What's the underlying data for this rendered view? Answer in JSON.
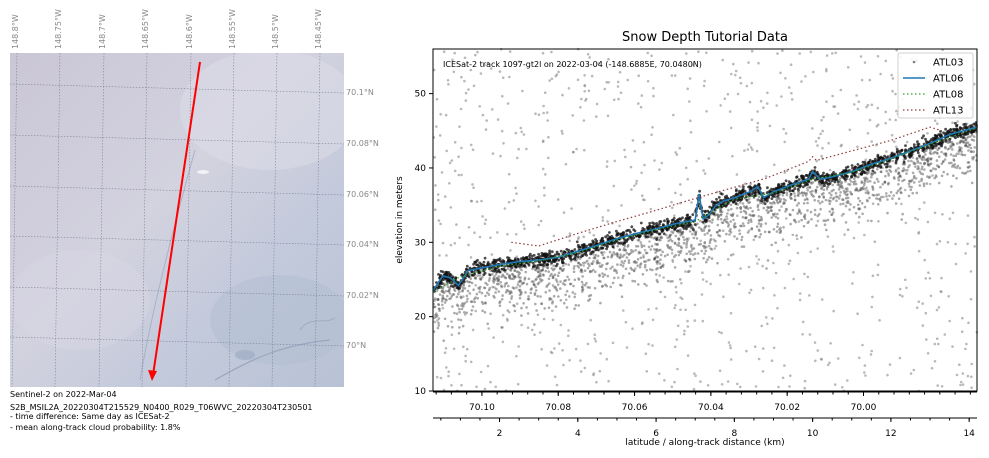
{
  "map_panel": {
    "lon_labels": [
      "148.8°W",
      "148.75°W",
      "148.7°W",
      "148.65°W",
      "148.6°W",
      "148.55°W",
      "148.5°W",
      "148.45°W"
    ],
    "lat_labels": [
      "70.1°N",
      "70.08°N",
      "70.06°N",
      "70.04°N",
      "70.02°N",
      "70°N"
    ],
    "caption_lines": [
      "Sentinel-2 on 2022-Mar-04",
      "S2B_MSIL2A_20220304T215529_N0400_R029_T06WVC_20220304T230501",
      "- time difference: Same day as ICESat-2",
      "- mean along-track cloud probability: 1.8%"
    ],
    "track_color": "#ff0000",
    "image_color": "#cfcfdc"
  },
  "chart_data": {
    "type": "scatter",
    "title": "Snow Depth Tutorial Data",
    "annotation": "ICESat-2 track 1097-gt2l on 2022-03-04 (-148.6885E, 70.0480N)",
    "ylabel": "elevation in meters",
    "xlabel": "latitude / along-track distance (km)",
    "xlim": [
      0.3,
      14.2
    ],
    "ylim": [
      10,
      56
    ],
    "yticks": [
      10,
      20,
      30,
      40,
      50
    ],
    "xticks_bottom": [
      2,
      4,
      6,
      8,
      10,
      12,
      14
    ],
    "xticks_top": [
      {
        "label": "70.10",
        "x": 1.55
      },
      {
        "label": "70.08",
        "x": 3.5
      },
      {
        "label": "70.06",
        "x": 5.45
      },
      {
        "label": "70.04",
        "x": 7.4
      },
      {
        "label": "70.02",
        "x": 9.35
      },
      {
        "label": "70.00",
        "x": 11.3
      }
    ],
    "legend_position": "top-right",
    "series": [
      {
        "name": "ATL03",
        "style": "points",
        "color": "#808080"
      },
      {
        "name": "ATL06",
        "style": "solid",
        "color": "#1f77b4",
        "x": [
          0.3,
          0.55,
          0.75,
          0.95,
          1.2,
          1.5,
          2.0,
          2.5,
          3.0,
          3.5,
          4.0,
          4.5,
          5.0,
          5.5,
          6.0,
          6.5,
          7.0,
          7.1,
          7.2,
          7.3,
          7.4,
          7.5,
          7.7,
          8.0,
          8.4,
          8.6,
          8.75,
          9.0,
          9.5,
          9.9,
          10.0,
          10.2,
          10.5,
          11.0,
          11.5,
          12.0,
          12.5,
          13.0,
          13.5,
          14.2
        ],
        "y": [
          23.5,
          25.5,
          25.2,
          24.2,
          26.2,
          26.5,
          27.0,
          27.4,
          27.6,
          28.0,
          28.8,
          29.6,
          30.5,
          31.2,
          31.8,
          32.5,
          33.0,
          36.5,
          33.2,
          33.5,
          34.0,
          34.8,
          35.5,
          36.0,
          36.8,
          37.5,
          36.0,
          36.8,
          37.8,
          38.5,
          39.5,
          38.5,
          38.8,
          39.5,
          40.5,
          41.3,
          42.3,
          43.3,
          44.5,
          45.5
        ]
      },
      {
        "name": "ATL08",
        "style": "dotted",
        "color": "#2ca02c",
        "x": [
          0.3,
          1.0,
          2.0,
          3.0,
          4.0,
          5.0,
          6.0,
          7.0,
          8.0,
          9.0,
          10.0,
          11.0,
          12.0,
          13.0,
          14.2
        ],
        "y": [
          23.3,
          25.4,
          26.8,
          27.5,
          28.6,
          30.3,
          31.7,
          32.8,
          35.8,
          36.6,
          38.5,
          39.4,
          41.2,
          43.2,
          45.4
        ]
      },
      {
        "name": "ATL13",
        "style": "dotted",
        "color": "#8c3a3a",
        "x": [
          2.3,
          3.0,
          4.0,
          5.0,
          6.0,
          7.0,
          8.0,
          8.8,
          9.9,
          10.0,
          10.1,
          10.3,
          11.0,
          12.0,
          13.0,
          13.3
        ],
        "y": [
          30.0,
          29.5,
          31.2,
          32.8,
          34.3,
          35.9,
          37.4,
          38.6,
          40.9,
          41.5,
          41.0,
          41.3,
          42.3,
          43.7,
          45.5,
          45.0
        ]
      }
    ]
  }
}
